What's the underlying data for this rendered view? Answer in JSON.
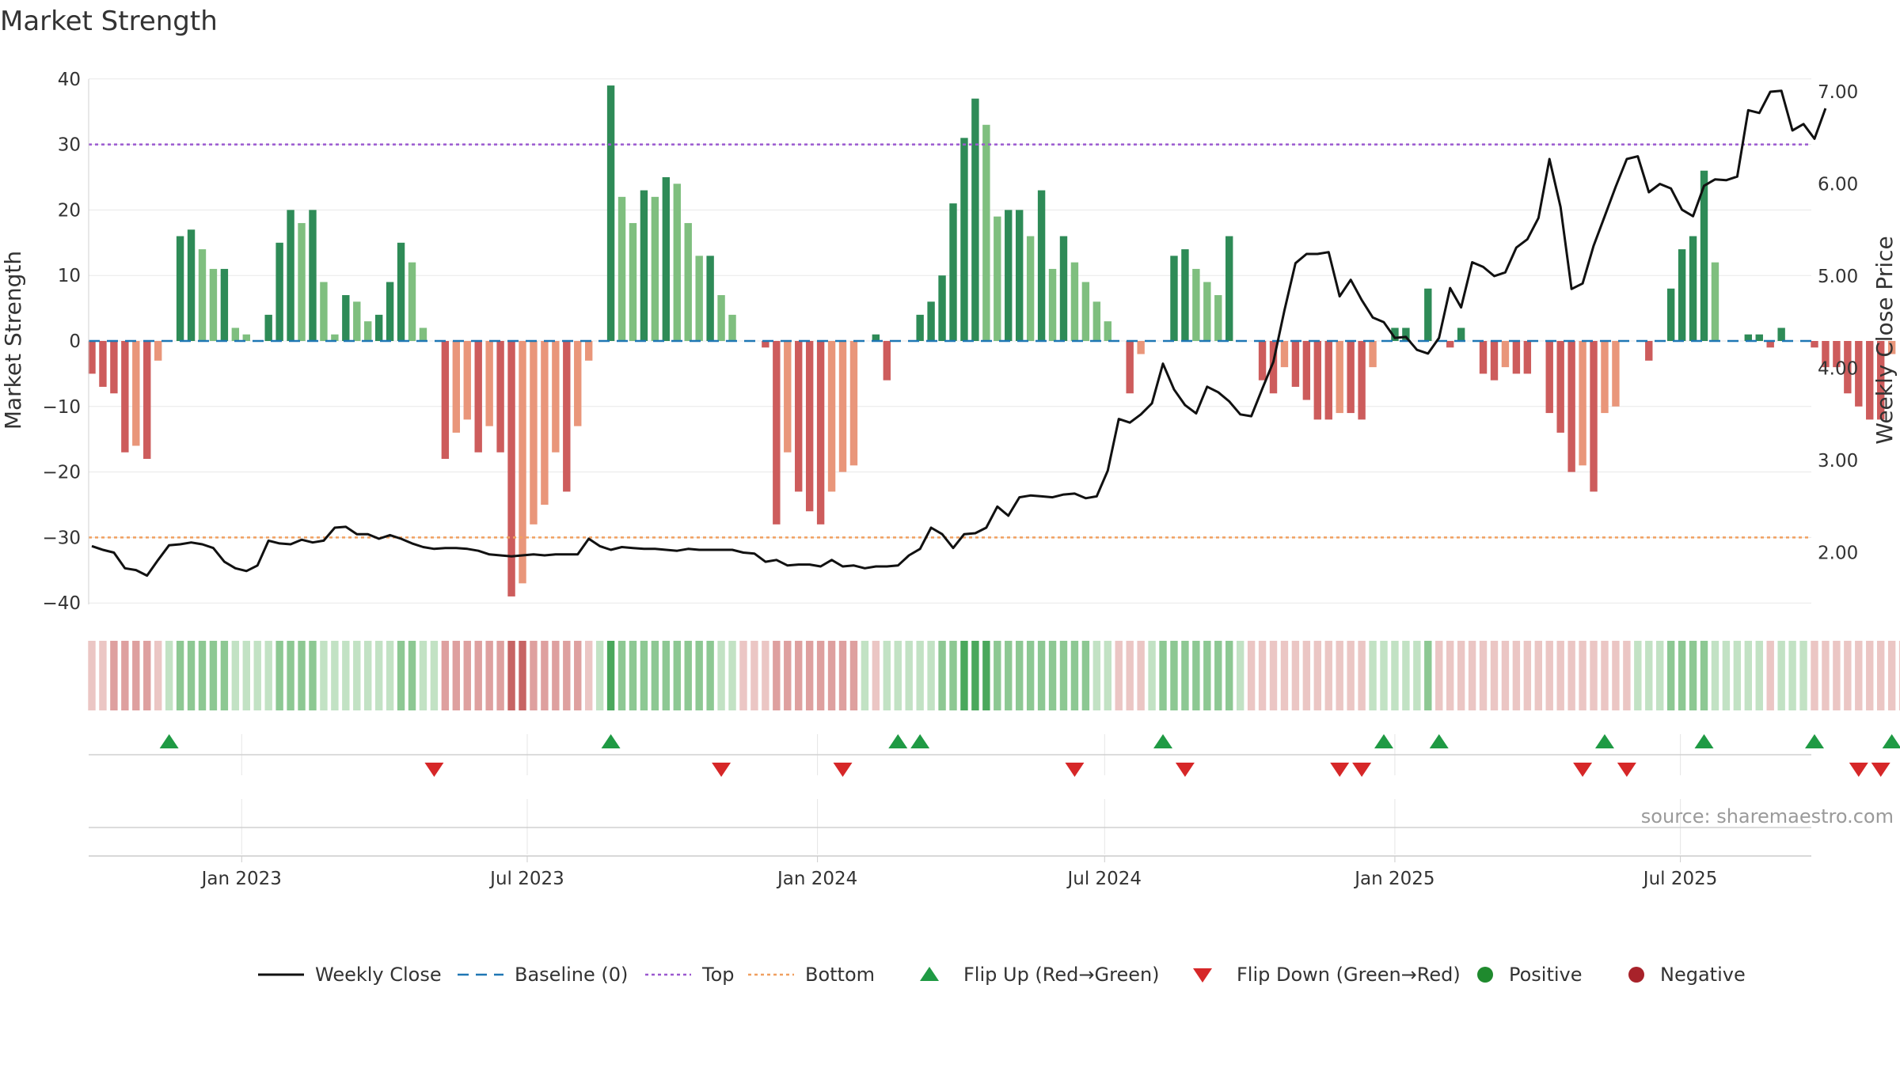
{
  "chart_data": {
    "type": "bar",
    "title": "Market Strength",
    "ylabel": "Market Strength",
    "y2label": "Weekly Close Price",
    "ylim": [
      -42,
      42
    ],
    "y2lim": [
      1.45,
      7.2
    ],
    "yticks": [
      40,
      30,
      20,
      10,
      0,
      -10,
      -20,
      -30,
      -40
    ],
    "y2ticks": [
      "7.00",
      "6.00",
      "5.00",
      "4.00",
      "3.00",
      "2.00"
    ],
    "xlim": [
      "2022-09-26",
      "2025-09-22"
    ],
    "xticks": [
      {
        "date": "2023-01-01",
        "label": "Jan 2023"
      },
      {
        "date": "2023-07-01",
        "label": "Jul 2023"
      },
      {
        "date": "2024-01-01",
        "label": "Jan 2024"
      },
      {
        "date": "2024-07-01",
        "label": "Jul 2024"
      },
      {
        "date": "2025-01-01",
        "label": "Jan 2025"
      },
      {
        "date": "2025-07-01",
        "label": "Jul 2025"
      }
    ],
    "reference_lines": [
      {
        "name": "Top",
        "value": 30,
        "color": "#9b59d0"
      },
      {
        "name": "Bottom",
        "value": -30,
        "color": "#f0a060"
      },
      {
        "name": "Baseline (0)",
        "value": 0,
        "color": "#1f77b4"
      }
    ],
    "start_date": "2022-09-26",
    "strength": [
      -5,
      -7,
      -8,
      -17,
      -16,
      -18,
      -3,
      0,
      16,
      17,
      14,
      11,
      11,
      2,
      1,
      0,
      4,
      15,
      20,
      18,
      20,
      9,
      1,
      7,
      6,
      3,
      4,
      9,
      15,
      12,
      2,
      0,
      -18,
      -14,
      -12,
      -17,
      -13,
      -17,
      -39,
      -37,
      -28,
      -25,
      -17,
      -23,
      -13,
      -3,
      0,
      39,
      22,
      18,
      23,
      22,
      25,
      24,
      18,
      13,
      13,
      7,
      4,
      0,
      0,
      -1,
      -28,
      -17,
      -23,
      -26,
      -28,
      -23,
      -20,
      -19,
      0,
      1,
      -6,
      0,
      0,
      4,
      6,
      10,
      21,
      31,
      37,
      33,
      19,
      20,
      20,
      16,
      23,
      11,
      16,
      12,
      9,
      6,
      3,
      0,
      -8,
      -2,
      0,
      0,
      13,
      14,
      11,
      9,
      7,
      16,
      0,
      0,
      -6,
      -8,
      -4,
      -7,
      -9,
      -12,
      -12,
      -11,
      -11,
      -12,
      -4,
      0,
      2,
      2,
      0,
      8,
      0,
      -1,
      2,
      0,
      -5,
      -6,
      -4,
      -5,
      -5,
      0,
      -11,
      -14,
      -20,
      -19,
      -23,
      -11,
      -10,
      0,
      0,
      -3,
      0,
      8,
      14,
      16,
      26,
      12,
      0,
      0,
      1,
      1,
      -1,
      2,
      0,
      0,
      -1,
      -4,
      -4,
      -8,
      -10,
      -12,
      -12,
      -2,
      0,
      13,
      12,
      15,
      10,
      9,
      5,
      0,
      -4,
      6,
      -1,
      5
    ],
    "price_weekly_close": [
      2.07,
      2.03,
      2.0,
      1.83,
      1.81,
      1.75,
      1.92,
      2.08,
      2.09,
      2.11,
      2.09,
      2.05,
      1.9,
      1.83,
      1.8,
      1.86,
      2.13,
      2.1,
      2.09,
      2.14,
      2.11,
      2.13,
      2.27,
      2.28,
      2.2,
      2.2,
      2.15,
      2.19,
      2.15,
      2.1,
      2.06,
      2.04,
      2.05,
      2.05,
      2.04,
      2.02,
      1.98,
      1.97,
      1.96,
      1.97,
      1.98,
      1.97,
      1.98,
      1.98,
      1.98,
      2.15,
      2.07,
      2.03,
      2.06,
      2.05,
      2.04,
      2.04,
      2.03,
      2.02,
      2.04,
      2.03,
      2.03,
      2.03,
      2.03,
      2.0,
      1.99,
      1.9,
      1.92,
      1.86,
      1.87,
      1.87,
      1.85,
      1.92,
      1.85,
      1.86,
      1.83,
      1.85,
      1.85,
      1.86,
      1.97,
      2.04,
      2.27,
      2.2,
      2.05,
      2.2,
      2.21,
      2.27,
      2.5,
      2.4,
      2.6,
      2.62,
      2.61,
      2.6,
      2.63,
      2.64,
      2.59,
      2.61,
      2.89,
      3.45,
      3.41,
      3.5,
      3.62,
      4.05,
      3.77,
      3.6,
      3.51,
      3.8,
      3.74,
      3.64,
      3.5,
      3.48,
      3.78,
      4.07,
      4.63,
      5.14,
      5.24,
      5.24,
      5.26,
      4.78,
      4.96,
      4.74,
      4.55,
      4.5,
      4.33,
      4.34,
      4.2,
      4.16,
      4.33,
      4.87,
      4.66,
      5.15,
      5.1,
      5.0,
      5.04,
      5.31,
      5.4,
      5.63,
      6.27,
      5.75,
      4.86,
      4.92,
      5.33,
      5.65,
      5.97,
      6.27,
      6.3,
      5.91,
      6.0,
      5.95,
      5.72,
      5.65,
      5.98,
      6.05,
      6.04,
      6.08,
      6.8,
      6.77,
      7.0,
      7.01,
      6.58,
      6.65,
      6.49,
      6.82
    ],
    "regime_strip": [
      -1,
      -1,
      -2,
      -2,
      -2,
      -2,
      -1,
      1,
      2,
      2,
      2,
      2,
      2,
      1,
      1,
      1,
      1,
      2,
      2,
      2,
      2,
      1,
      1,
      1,
      1,
      1,
      1,
      1,
      2,
      2,
      1,
      1,
      -2,
      -2,
      -2,
      -2,
      -2,
      -2,
      -3,
      -3,
      -2,
      -2,
      -2,
      -2,
      -2,
      -1,
      1,
      3,
      2,
      2,
      2,
      2,
      2,
      2,
      2,
      2,
      2,
      1,
      1,
      -1,
      -1,
      -1,
      -2,
      -2,
      -2,
      -2,
      -2,
      -2,
      -2,
      -2,
      1,
      -1,
      1,
      1,
      1,
      1,
      1,
      2,
      2,
      3,
      3,
      3,
      2,
      2,
      2,
      2,
      2,
      2,
      2,
      2,
      2,
      1,
      1,
      -1,
      -1,
      -1,
      1,
      2,
      2,
      2,
      2,
      2,
      2,
      2,
      1,
      -1,
      -1,
      -1,
      -1,
      -1,
      -1,
      -1,
      -1,
      -1,
      -1,
      -1,
      1,
      1,
      1,
      1,
      1,
      2,
      -1,
      -1,
      -1,
      -1,
      -1,
      -1,
      -1,
      -1,
      -1,
      -1,
      -1,
      -1,
      -1,
      -1,
      -1,
      -1,
      -1,
      -1,
      1,
      1,
      1,
      2,
      2,
      2,
      2,
      1,
      1,
      1,
      1,
      1,
      -1,
      1,
      1,
      1,
      -1,
      -1,
      -1,
      -1,
      -1,
      -1,
      -1,
      -1,
      -1,
      2,
      2,
      2,
      2,
      2,
      2,
      2,
      1,
      -1,
      1,
      -1,
      1
    ],
    "flip_up_weeks": [
      7,
      47,
      73,
      75,
      97,
      117,
      122,
      137,
      146,
      156,
      163,
      165
    ],
    "flip_down_weeks": [
      31,
      57,
      68,
      89,
      99,
      113,
      115,
      135,
      139,
      160,
      162
    ],
    "legend": [
      {
        "label": "Weekly Close",
        "kind": "line",
        "color": "#111111"
      },
      {
        "label": "Baseline (0)",
        "kind": "dash",
        "color": "#1f77b4"
      },
      {
        "label": "Top",
        "kind": "dot",
        "color": "#9b59d0"
      },
      {
        "label": "Bottom",
        "kind": "dot",
        "color": "#f0a060"
      },
      {
        "label": "Flip Up (Red→Green)",
        "kind": "tri-up",
        "color": "#1f9a44"
      },
      {
        "label": "Flip Down (Green→Red)",
        "kind": "tri-down",
        "color": "#d62728"
      },
      {
        "label": "Positive",
        "kind": "circle",
        "color": "#1f8a2e"
      },
      {
        "label": "Negative",
        "kind": "circle",
        "color": "#a8222a"
      }
    ],
    "colors": {
      "pos_strong": "#2e8b57",
      "pos_weak": "#7fbf7f",
      "neg_strong": "#cd5c5c",
      "neg_weak": "#e9967a",
      "price_line": "#111111",
      "grid": "#e8e8e8"
    },
    "source": "source: sharemaestro.com"
  }
}
